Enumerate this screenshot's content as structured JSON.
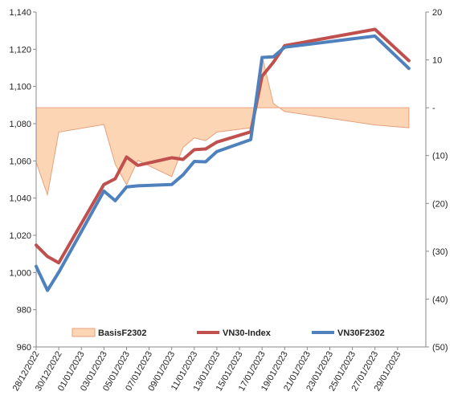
{
  "chart_data": {
    "type": "line",
    "x": [
      "28/12/2022",
      "29/12/2022",
      "30/12/2022",
      "03/01/2023",
      "04/01/2023",
      "05/01/2023",
      "06/01/2023",
      "09/01/2023",
      "10/01/2023",
      "11/01/2023",
      "12/01/2023",
      "13/01/2023",
      "16/01/2023",
      "17/01/2023",
      "18/01/2023",
      "19/01/2023",
      "27/01/2023",
      "30/01/2023"
    ],
    "xticks": [
      "28/12/2022",
      "30/12/2022",
      "01/01/2023",
      "03/01/2023",
      "05/01/2023",
      "07/01/2023",
      "09/01/2023",
      "11/01/2023",
      "13/01/2023",
      "15/01/2023",
      "17/01/2023",
      "19/01/2023",
      "21/01/2023",
      "23/01/2023",
      "25/01/2023",
      "27/01/2023",
      "29/01/2023"
    ],
    "series": [
      {
        "name": "BasisF2302",
        "type": "area",
        "axis": "right",
        "color": "#fcd5b5",
        "stroke": "#e7a07c",
        "values": [
          -11.4,
          -18.2,
          -5.1,
          -3.5,
          -11.8,
          -16.1,
          -11.0,
          -14.4,
          -8.3,
          -6.3,
          -6.9,
          -5.1,
          -4.2,
          10.8,
          0.9,
          -0.8,
          -3.6,
          -4.2
        ]
      },
      {
        "name": "VN30-Index",
        "type": "line",
        "axis": "left",
        "color": "#c0504d",
        "values": [
          1014.7,
          1008.6,
          1005.2,
          1047.3,
          1050.4,
          1062.1,
          1057.6,
          1061.7,
          1060.8,
          1066.0,
          1066.4,
          1070.1,
          1075.6,
          1105.5,
          1113.0,
          1121.9,
          1130.7,
          1113.9
        ]
      },
      {
        "name": "VN30F2302",
        "type": "line",
        "axis": "left",
        "color": "#4f81bd",
        "values": [
          1003.3,
          990.4,
          1000.1,
          1043.8,
          1038.6,
          1046.0,
          1046.6,
          1047.3,
          1052.5,
          1059.7,
          1059.5,
          1065.0,
          1071.4,
          1115.6,
          1115.9,
          1121.1,
          1127.1,
          1109.7
        ]
      }
    ],
    "yticks_left": [
      "960",
      "980",
      "1,000",
      "1,020",
      "1,040",
      "1,060",
      "1,080",
      "1,100",
      "1,120",
      "1,140"
    ],
    "yticks_right": [
      "(50)",
      "(40)",
      "(30)",
      "(20)",
      "(10)",
      "-",
      "10",
      "20"
    ],
    "ylim_left": [
      960,
      1140
    ],
    "ylim_right": [
      -50,
      20
    ],
    "grid": false,
    "legend_position": "bottom-inside",
    "title": "",
    "xlabel": "",
    "ylabel": ""
  }
}
